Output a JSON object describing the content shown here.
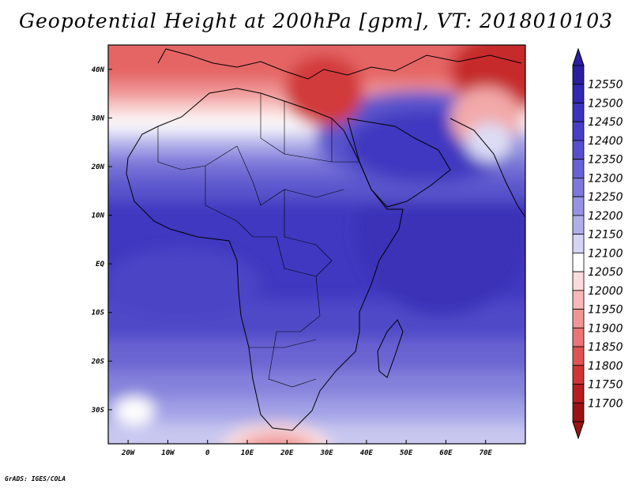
{
  "title": "Geopotential Height at 200hPa [gpm], VT: 2018010103",
  "credit": "GrADS: IGES/COLA",
  "map": {
    "lon_range": [
      -25,
      80
    ],
    "lat_range": [
      -37,
      45
    ],
    "lon_ticks": [
      {
        "value": -20,
        "label": "20W"
      },
      {
        "value": -10,
        "label": "10W"
      },
      {
        "value": 0,
        "label": "0"
      },
      {
        "value": 10,
        "label": "10E"
      },
      {
        "value": 20,
        "label": "20E"
      },
      {
        "value": 30,
        "label": "30E"
      },
      {
        "value": 40,
        "label": "40E"
      },
      {
        "value": 50,
        "label": "50E"
      },
      {
        "value": 60,
        "label": "60E"
      },
      {
        "value": 70,
        "label": "70E"
      }
    ],
    "lat_ticks": [
      {
        "value": 40,
        "label": "40N"
      },
      {
        "value": 30,
        "label": "30N"
      },
      {
        "value": 20,
        "label": "20N"
      },
      {
        "value": 10,
        "label": "10N"
      },
      {
        "value": 0,
        "label": "EQ"
      },
      {
        "value": -10,
        "label": "10S"
      },
      {
        "value": -20,
        "label": "20S"
      },
      {
        "value": -30,
        "label": "30S"
      }
    ]
  },
  "colorbar": {
    "labels": [
      "12550",
      "12500",
      "12450",
      "12400",
      "12350",
      "12300",
      "12250",
      "12200",
      "12150",
      "12100",
      "12050",
      "12000",
      "11950",
      "11900",
      "11850",
      "11800",
      "11750",
      "11700"
    ],
    "colors": [
      "#2a1f9e",
      "#3028b0",
      "#3a34bd",
      "#463fc6",
      "#5650cc",
      "#6863d3",
      "#7c79da",
      "#9593e2",
      "#b0afea",
      "#d5d4f3",
      "#ffffff",
      "#fbdcdc",
      "#f6b8b8",
      "#f09696",
      "#e97575",
      "#df5353",
      "#cf3535",
      "#b51f1f",
      "#9a1414"
    ]
  }
}
